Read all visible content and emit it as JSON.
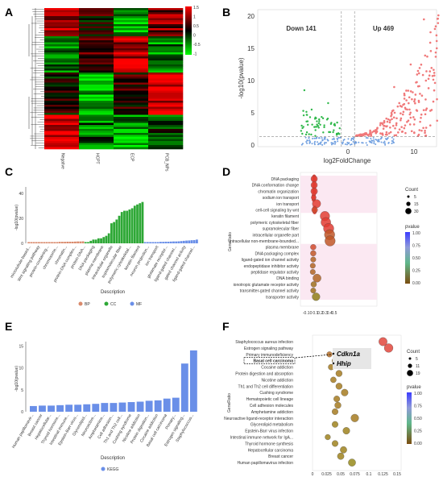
{
  "panels": {
    "A": "A",
    "B": "B",
    "C": "C",
    "D": "D",
    "E": "E",
    "F": "F"
  },
  "heatmap": {
    "columns": [
      "Negative",
      "HCPT",
      "ECP",
      "PCB_NPs"
    ],
    "scale_ticks": [
      "1.5",
      "1",
      "0.5",
      "0",
      "-0.5",
      "-1"
    ]
  },
  "volcano": {
    "down_label": "Down 141",
    "up_label": "Up 469",
    "xlabel": "log2FoldChange",
    "ylabel": "-log10(pvalue)",
    "x_ticks": [
      "0",
      "10"
    ],
    "y_ticks": [
      "0",
      "5",
      "10",
      "15",
      "20"
    ],
    "colors": {
      "down": "#2fb84a",
      "up": "#f0797a",
      "ns": "#6f9fe0"
    }
  },
  "go_bar": {
    "ylabel": "-log10(pvalue)",
    "xlabel": "Description",
    "y_ticks": [
      "0",
      "20",
      "40"
    ],
    "legend": [
      "BP",
      "CC",
      "MF"
    ],
    "colors": {
      "BP": "#d98a6c",
      "CC": "#2ea836",
      "MF": "#6a8fe8"
    },
    "categories": [
      "microtubule-based...",
      "Wnt signaling pathway",
      "protein-containing...",
      "chromosome...",
      "chromatin...",
      "protein-DNA complex...",
      "protein-DNA...",
      "DNA packaging",
      "plasma membrane",
      "intracellular organelle",
      "supramolecular fiber",
      "polymeric cytoskeletal...",
      "keratin filament",
      "neuron projection...",
      "ion transport",
      "glutamate receptor...",
      "ligand-gated channel...",
      "gated channel activity",
      "ligand-gated channel..."
    ]
  },
  "go_dot": {
    "ylabel": "GeneRatio",
    "x_ticks": [
      "-0.1",
      "0",
      "0.1",
      "0.2",
      "0.3",
      "0.4",
      "0.5"
    ],
    "terms": [
      "DNA packaging",
      "DNA conformation change",
      "chromatin organization",
      "sodium ion transport",
      "ion transport",
      "cell-cell signaling by wnt",
      "keratin filament",
      "polymeric cytoskeletal fiber",
      "supramolecular fiber",
      "intracellular organelle part",
      "intracellular non-membrane-bounded...",
      "plasma membrane",
      "DNA packaging complex",
      "ligand-gated ion channel activity",
      "endopeptidase inhibitor activity",
      "peptidase regulator activity",
      "DNA binding",
      "ionotropic glutamate receptor activity",
      "transmitter-gated channel activity",
      "transporter activity"
    ],
    "count_title": "Count",
    "count_labels": [
      "5",
      "15",
      "30"
    ],
    "pvalue_title": "pvalue",
    "pvalue_ticks": [
      "1.00",
      "0.75",
      "0.50",
      "0.25",
      "0.00"
    ]
  },
  "kegg_bar": {
    "ylabel": "-log10(pvalue)",
    "xlabel": "Description",
    "y_ticks": [
      "0",
      "5",
      "10",
      "15"
    ],
    "legend": [
      "KEGG"
    ],
    "color": "#6a8fe8",
    "categories": [
      "Human papillomavir...",
      "Breast cancer",
      "Hepatocellular...",
      "Thyroid hormone...",
      "Intestinal immune...",
      "Epstein-Barr virus...",
      "Glycerolipid...",
      "Neuroactive...",
      "Amphetamine...",
      "Cell adhesion...",
      "Th1 and Th2 cell...",
      "Cushing syndrome",
      "Nicotine addiction",
      "Protein digestion...",
      "Cocaine addiction",
      "Basal cell carcinoma",
      "Primary...",
      "Estrogen signaling...",
      "Staphylococcus..."
    ]
  },
  "kegg_dot": {
    "ylabel": "GeneRatio",
    "x_ticks": [
      "0",
      "0.025",
      "0.05",
      "0.075",
      "0.1",
      "0.125",
      "0.15"
    ],
    "terms": [
      "Staphylococcus aureus infection",
      "Estrogen signaling pathway",
      "Primary immunodeficiency",
      "Basal cell carcinoma",
      "Cocaine addiction",
      "Protein digestion and absorption",
      "Nicotine addiction",
      "Th1 and Th2 cell differentiation",
      "Cushing syndrome",
      "Hematopoietic cell lineage",
      "Cell adhesion molecules",
      "Amphetamine addiction",
      "Neuroactive ligand-receptor interaction",
      "Glycerolipid metabolism",
      "Epstein-Barr virus infection",
      "Intestinal immune network for IgA...",
      "Thyroid hormone synthesis",
      "Hepatocellular carcinoma",
      "Breast cancer",
      "Human papillomavirus infection"
    ],
    "genes": [
      "Cdkn1a",
      "Hhip"
    ],
    "count_title": "Count",
    "count_labels": [
      "5",
      "11",
      "19"
    ],
    "pvalue_title": "pvalue",
    "pvalue_ticks": [
      "1.00",
      "0.75",
      "0.50",
      "0.25",
      "0.00"
    ]
  },
  "chart_data": [
    {
      "type": "bar",
      "title": "",
      "ylabel": "-log10(pvalue)",
      "xlabel": "Description",
      "categories_count": 66,
      "series": [
        {
          "name": "BP",
          "values": [
            1,
            1,
            1,
            1,
            1,
            1,
            1,
            1,
            1,
            1,
            1,
            1,
            1.2,
            1.2,
            1.2,
            1.3,
            1.3,
            1.3,
            1.4,
            1.5,
            1.5,
            1.6
          ]
        },
        {
          "name": "CC",
          "values": [
            1,
            1,
            2,
            3,
            3,
            4,
            4,
            5,
            6,
            8,
            16,
            17,
            19,
            22,
            25,
            26,
            26,
            27,
            28,
            30,
            31,
            32,
            33
          ]
        },
        {
          "name": "MF",
          "values": [
            1,
            1,
            1,
            1,
            1,
            1,
            1.2,
            1.2,
            1.3,
            1.3,
            1.4,
            1.5,
            1.5,
            1.6,
            1.8,
            2,
            2.2,
            2.3,
            2.5,
            2.6,
            3
          ]
        }
      ],
      "ylim": [
        0,
        45
      ]
    },
    {
      "type": "bar",
      "title": "",
      "ylabel": "-log10(pvalue)",
      "xlabel": "Description",
      "categories": [
        "Human papillomavir...",
        "Breast cancer",
        "Hepatocellular...",
        "Thyroid hormone...",
        "Intestinal immune...",
        "Epstein-Barr virus...",
        "Glycerolipid...",
        "Neuroactive...",
        "Amphetamine...",
        "Cell adhesion...",
        "Th1 and Th2 cell...",
        "Cushing syndrome",
        "Nicotine addiction",
        "Protein digestion...",
        "Cocaine addiction",
        "Basal cell carcinoma",
        "Primary...",
        "Estrogen signaling...",
        "Staphylococcus..."
      ],
      "values": [
        1.3,
        1.4,
        1.4,
        1.5,
        1.6,
        1.6,
        1.7,
        1.8,
        2.0,
        2.0,
        2.1,
        2.2,
        2.3,
        2.5,
        2.6,
        3.0,
        3.2,
        11,
        14
      ],
      "ylim": [
        0,
        16
      ]
    },
    {
      "type": "scatter",
      "title": "",
      "xlabel": "GeneRatio",
      "terms_count": 20,
      "points": [
        {
          "term": "DNA packaging",
          "x": 0.07,
          "count": 8,
          "p": 0.0
        },
        {
          "term": "DNA conformation change",
          "x": 0.07,
          "count": 8,
          "p": 0.0
        },
        {
          "term": "chromatin organization",
          "x": 0.07,
          "count": 9,
          "p": 0.0
        },
        {
          "term": "sodium ion transport",
          "x": 0.06,
          "count": 3,
          "p": 0.0
        },
        {
          "term": "ion transport",
          "x": 0.12,
          "count": 17,
          "p": 0.0
        },
        {
          "term": "cell-cell signaling by wnt",
          "x": 0.08,
          "count": 6,
          "p": 0.01
        },
        {
          "term": "keratin filament",
          "x": 0.3,
          "count": 24,
          "p": 0.0
        },
        {
          "term": "polymeric cytoskeletal fiber",
          "x": 0.32,
          "count": 26,
          "p": 0.0
        },
        {
          "term": "supramolecular fiber",
          "x": 0.38,
          "count": 30,
          "p": 0.0
        },
        {
          "term": "intracellular organelle part",
          "x": 0.4,
          "count": 30,
          "p": 0.02
        },
        {
          "term": "intracellular non-membrane-bounded...",
          "x": 0.41,
          "count": 30,
          "p": 0.02
        },
        {
          "term": "plasma membrane",
          "x": 0.05,
          "count": 5,
          "p": 0.01
        },
        {
          "term": "DNA packaging complex",
          "x": 0.05,
          "count": 5,
          "p": 0.02
        },
        {
          "term": "ligand-gated ion channel activity",
          "x": 0.05,
          "count": 4,
          "p": 0.03
        },
        {
          "term": "endopeptidase inhibitor activity",
          "x": 0.04,
          "count": 4,
          "p": 0.03
        },
        {
          "term": "peptidase regulator activity",
          "x": 0.04,
          "count": 4,
          "p": 0.03
        },
        {
          "term": "DNA binding",
          "x": 0.13,
          "count": 16,
          "p": 0.03
        },
        {
          "term": "ionotropic glutamate receptor activity",
          "x": 0.06,
          "count": 5,
          "p": 0.04
        },
        {
          "term": "transmitter-gated channel activity",
          "x": 0.05,
          "count": 4,
          "p": 0.04
        },
        {
          "term": "transporter activity",
          "x": 0.11,
          "count": 14,
          "p": 0.05
        }
      ]
    },
    {
      "type": "scatter",
      "title": "",
      "xlabel": "GeneRatio",
      "points": [
        {
          "term": "Staphylococcus aureus infection",
          "x": 0.125,
          "count": 17,
          "p": 0.0
        },
        {
          "term": "Estrogen signaling pathway",
          "x": 0.135,
          "count": 19,
          "p": 0.0
        },
        {
          "term": "Primary immunodeficiency",
          "x": 0.03,
          "count": 5,
          "p": 0.03
        },
        {
          "term": "Basal cell carcinoma",
          "x": 0.04,
          "count": 7,
          "p": 0.04
        },
        {
          "term": "Cocaine addiction",
          "x": 0.033,
          "count": 6,
          "p": 0.04
        },
        {
          "term": "Protein digestion and absorption",
          "x": 0.047,
          "count": 8,
          "p": 0.04
        },
        {
          "term": "Nicotine addiction",
          "x": 0.037,
          "count": 6,
          "p": 0.04
        },
        {
          "term": "Th1 and Th2 cell differentiation",
          "x": 0.047,
          "count": 8,
          "p": 0.04
        },
        {
          "term": "Cushing syndrome",
          "x": 0.057,
          "count": 10,
          "p": 0.04
        },
        {
          "term": "Hematopoietic cell lineage",
          "x": 0.043,
          "count": 7,
          "p": 0.04
        },
        {
          "term": "Cell adhesion molecules",
          "x": 0.045,
          "count": 8,
          "p": 0.04
        },
        {
          "term": "Amphetamine addiction",
          "x": 0.04,
          "count": 7,
          "p": 0.04
        },
        {
          "term": "Neuroactive ligand-receptor interaction",
          "x": 0.075,
          "count": 14,
          "p": 0.04
        },
        {
          "term": "Glycerolipid metabolism",
          "x": 0.04,
          "count": 7,
          "p": 0.045
        },
        {
          "term": "Epstein-Barr virus infection",
          "x": 0.06,
          "count": 10,
          "p": 0.045
        },
        {
          "term": "Intestinal immune network for IgA...",
          "x": 0.027,
          "count": 5,
          "p": 0.045
        },
        {
          "term": "Thyroid hormone synthesis",
          "x": 0.04,
          "count": 7,
          "p": 0.045
        },
        {
          "term": "Hepatocellular carcinoma",
          "x": 0.055,
          "count": 9,
          "p": 0.045
        },
        {
          "term": "Breast cancer",
          "x": 0.05,
          "count": 9,
          "p": 0.045
        },
        {
          "term": "Human papillomavirus infection",
          "x": 0.07,
          "count": 12,
          "p": 0.05
        }
      ]
    }
  ]
}
